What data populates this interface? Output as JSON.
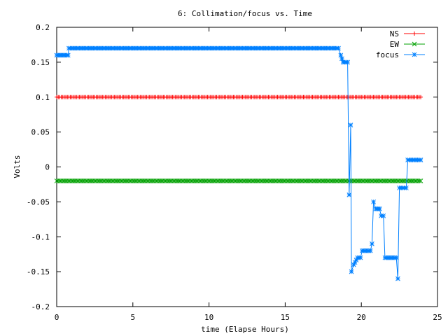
{
  "chart_data": {
    "type": "line",
    "title": "6: Collimation/focus vs. Time",
    "xlabel": "time (Elapse Hours)",
    "ylabel": "Volts",
    "xlim": [
      0,
      25
    ],
    "ylim": [
      -0.2,
      0.2
    ],
    "xticks": [
      0,
      5,
      10,
      15,
      20,
      25
    ],
    "xtick_labels": [
      "0",
      "5",
      "10",
      "15",
      "20",
      "25"
    ],
    "yticks": [
      -0.2,
      -0.15,
      -0.1,
      -0.05,
      0,
      0.05,
      0.1,
      0.15,
      0.2
    ],
    "ytick_labels": [
      "-0.2",
      "-0.15",
      "-0.1",
      "-0.05",
      "0",
      "0.05",
      "0.1",
      "0.15",
      "0.2"
    ],
    "grid": false,
    "legend_position": "top-right",
    "series": [
      {
        "name": "NS",
        "color": "#ff0000",
        "marker": "plus",
        "points": [
          [
            0,
            0.1
          ],
          [
            23.9,
            0.1
          ]
        ]
      },
      {
        "name": "EW",
        "color": "#00a000",
        "marker": "x",
        "points": [
          [
            0,
            -0.02
          ],
          [
            23.9,
            -0.02
          ]
        ]
      },
      {
        "name": "focus",
        "color": "#0080ff",
        "marker": "star",
        "points": [
          [
            0,
            0.16
          ],
          [
            0.75,
            0.16
          ],
          [
            0.8,
            0.17
          ],
          [
            18.5,
            0.17
          ],
          [
            18.65,
            0.16
          ],
          [
            18.8,
            0.15
          ],
          [
            19.1,
            0.15
          ],
          [
            19.2,
            -0.04
          ],
          [
            19.3,
            0.06
          ],
          [
            19.35,
            -0.15
          ],
          [
            19.5,
            -0.14
          ],
          [
            19.75,
            -0.13
          ],
          [
            19.95,
            -0.13
          ],
          [
            20.05,
            -0.12
          ],
          [
            20.6,
            -0.12
          ],
          [
            20.7,
            -0.11
          ],
          [
            20.8,
            -0.05
          ],
          [
            20.95,
            -0.06
          ],
          [
            21.2,
            -0.06
          ],
          [
            21.3,
            -0.07
          ],
          [
            21.45,
            -0.07
          ],
          [
            21.55,
            -0.13
          ],
          [
            22.3,
            -0.13
          ],
          [
            22.4,
            -0.16
          ],
          [
            22.5,
            -0.03
          ],
          [
            22.95,
            -0.03
          ],
          [
            23.05,
            0.01
          ],
          [
            23.9,
            0.01
          ]
        ]
      }
    ]
  }
}
